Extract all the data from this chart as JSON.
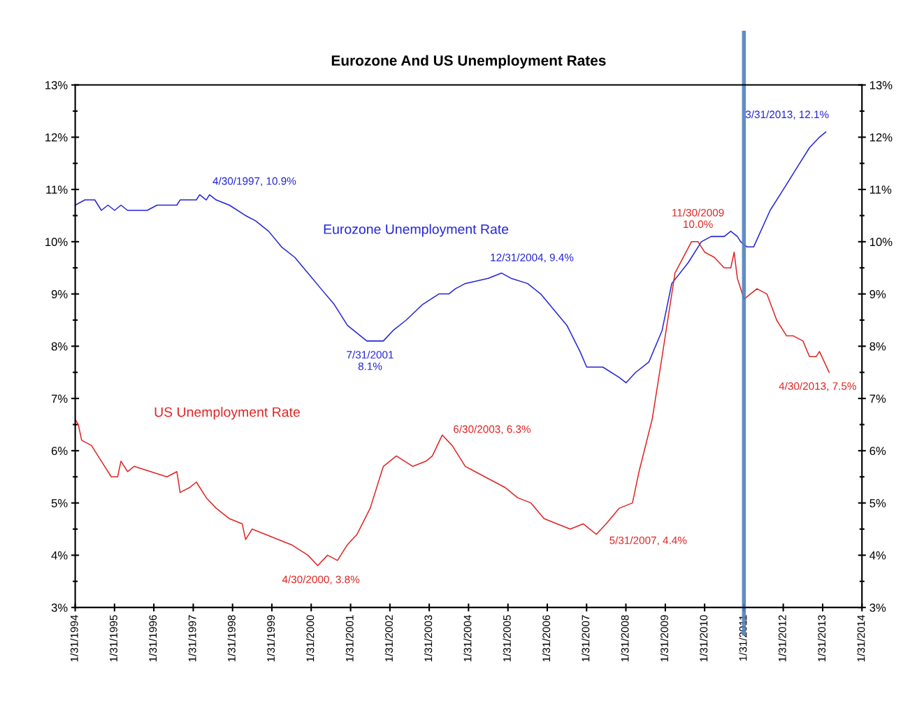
{
  "chart_data": {
    "type": "line",
    "title": "Eurozone And US Unemployment Rates",
    "series": [
      {
        "name": "Eurozone Unemployment Rate",
        "color": "#2424d8",
        "x": [
          "1994-02",
          "1994-05",
          "1994-08",
          "1994-10",
          "1994-12",
          "1995-02",
          "1995-04",
          "1995-06",
          "1995-12",
          "1996-03",
          "1996-09",
          "1996-10",
          "1997-03",
          "1997-04",
          "1997-06",
          "1997-07",
          "1997-09",
          "1998-01",
          "1998-06",
          "1998-09",
          "1999-01",
          "1999-05",
          "1999-09",
          "2000-01",
          "2000-05",
          "2000-09",
          "2001-01",
          "2001-05",
          "2001-07",
          "2001-12",
          "2002-03",
          "2002-07",
          "2002-12",
          "2003-05",
          "2003-08",
          "2003-10",
          "2004-01",
          "2004-08",
          "2004-12",
          "2005-03",
          "2005-08",
          "2005-12",
          "2006-04",
          "2006-08",
          "2006-12",
          "2007-02",
          "2007-07",
          "2007-12",
          "2008-02",
          "2008-05",
          "2008-09",
          "2009-01",
          "2009-04",
          "2009-09",
          "2010-01",
          "2010-04",
          "2010-08",
          "2010-10",
          "2010-12",
          "2011-01",
          "2011-03",
          "2011-05",
          "2011-10",
          "2012-02",
          "2012-06",
          "2012-10",
          "2013-01",
          "2013-03"
        ],
        "values": [
          10.7,
          10.8,
          10.8,
          10.6,
          10.7,
          10.6,
          10.7,
          10.6,
          10.6,
          10.7,
          10.7,
          10.8,
          10.8,
          10.9,
          10.8,
          10.9,
          10.8,
          10.7,
          10.5,
          10.4,
          10.2,
          9.9,
          9.7,
          9.4,
          9.1,
          8.8,
          8.4,
          8.2,
          8.1,
          8.1,
          8.3,
          8.5,
          8.8,
          9.0,
          9.0,
          9.1,
          9.2,
          9.3,
          9.4,
          9.3,
          9.2,
          9.0,
          8.7,
          8.4,
          7.9,
          7.6,
          7.6,
          7.4,
          7.3,
          7.5,
          7.7,
          8.3,
          9.2,
          9.6,
          10.0,
          10.1,
          10.1,
          10.2,
          10.1,
          10.0,
          9.9,
          9.9,
          10.6,
          11.0,
          11.4,
          11.8,
          12.0,
          12.1
        ]
      },
      {
        "name": "US Unemployment Rate",
        "color": "#e02424",
        "x": [
          "1994-02",
          "1994-03",
          "1994-04",
          "1994-07",
          "1994-10",
          "1995-01",
          "1995-03",
          "1995-04",
          "1995-06",
          "1995-08",
          "1996-01",
          "1996-06",
          "1996-09",
          "1996-10",
          "1997-01",
          "1997-03",
          "1997-06",
          "1997-09",
          "1998-01",
          "1998-05",
          "1998-06",
          "1998-08",
          "1998-12",
          "1999-04",
          "1999-08",
          "2000-01",
          "2000-04",
          "2000-07",
          "2000-10",
          "2001-01",
          "2001-04",
          "2001-08",
          "2001-12",
          "2002-04",
          "2002-09",
          "2003-01",
          "2003-03",
          "2003-06",
          "2003-09",
          "2004-01",
          "2004-04",
          "2004-07",
          "2005-01",
          "2005-05",
          "2005-09",
          "2006-01",
          "2006-05",
          "2006-09",
          "2007-01",
          "2007-05",
          "2007-08",
          "2007-12",
          "2008-04",
          "2008-06",
          "2008-10",
          "2009-01",
          "2009-05",
          "2009-10",
          "2009-12",
          "2010-02",
          "2010-05",
          "2010-08",
          "2010-10",
          "2010-11",
          "2010-12",
          "2011-02",
          "2011-04",
          "2011-06",
          "2011-09",
          "2011-12",
          "2012-03",
          "2012-05",
          "2012-08",
          "2012-10",
          "2012-12",
          "2013-01",
          "2013-04"
        ],
        "values": [
          6.6,
          6.5,
          6.2,
          6.1,
          5.8,
          5.5,
          5.5,
          5.8,
          5.6,
          5.7,
          5.6,
          5.5,
          5.6,
          5.2,
          5.3,
          5.4,
          5.1,
          4.9,
          4.7,
          4.6,
          4.3,
          4.5,
          4.4,
          4.3,
          4.2,
          4.0,
          3.8,
          4.0,
          3.9,
          4.2,
          4.4,
          4.9,
          5.7,
          5.9,
          5.7,
          5.8,
          5.9,
          6.3,
          6.1,
          5.7,
          5.6,
          5.5,
          5.3,
          5.1,
          5.0,
          4.7,
          4.6,
          4.5,
          4.6,
          4.4,
          4.6,
          4.9,
          5.0,
          5.6,
          6.6,
          7.8,
          9.4,
          10.0,
          10.0,
          9.8,
          9.7,
          9.5,
          9.5,
          9.8,
          9.3,
          8.9,
          9.0,
          9.1,
          9.0,
          8.5,
          8.2,
          8.2,
          8.1,
          7.8,
          7.8,
          7.9,
          7.5
        ]
      }
    ],
    "xlim": [
      "1994-01-31",
      "2014-01-31"
    ],
    "xticks": [
      {
        "value": "1994-01-31",
        "label": "1/31/1994"
      },
      {
        "value": "1995-01-31",
        "label": "1/31/1995"
      },
      {
        "value": "1996-01-31",
        "label": "1/31/1996"
      },
      {
        "value": "1997-01-31",
        "label": "1/31/1997"
      },
      {
        "value": "1998-01-31",
        "label": "1/31/1998"
      },
      {
        "value": "1999-01-31",
        "label": "1/31/1999"
      },
      {
        "value": "2000-01-31",
        "label": "1/31/2000"
      },
      {
        "value": "2001-01-31",
        "label": "1/31/2001"
      },
      {
        "value": "2002-01-31",
        "label": "1/31/2002"
      },
      {
        "value": "2003-01-31",
        "label": "1/31/2003"
      },
      {
        "value": "2004-01-31",
        "label": "1/31/2004"
      },
      {
        "value": "2005-01-31",
        "label": "1/31/2005"
      },
      {
        "value": "2006-01-31",
        "label": "1/31/2006"
      },
      {
        "value": "2007-01-31",
        "label": "1/31/2007"
      },
      {
        "value": "2008-01-31",
        "label": "1/31/2008"
      },
      {
        "value": "2009-01-31",
        "label": "1/31/2009"
      },
      {
        "value": "2010-01-31",
        "label": "1/31/2010"
      },
      {
        "value": "2011-01-31",
        "label": "1/31/2011"
      },
      {
        "value": "2012-01-31",
        "label": "1/31/2012"
      },
      {
        "value": "2013-01-31",
        "label": "1/31/2013"
      },
      {
        "value": "2014-01-31",
        "label": "1/31/2014"
      }
    ],
    "ylim": [
      3,
      13
    ],
    "yticks": [
      {
        "value": 3,
        "label": "3%"
      },
      {
        "value": 4,
        "label": "4%"
      },
      {
        "value": 5,
        "label": "5%"
      },
      {
        "value": 6,
        "label": "6%"
      },
      {
        "value": 7,
        "label": "7%"
      },
      {
        "value": 8,
        "label": "8%"
      },
      {
        "value": 9,
        "label": "9%"
      },
      {
        "value": 10,
        "label": "10%"
      },
      {
        "value": 11,
        "label": "11%"
      },
      {
        "value": 12,
        "label": "12%"
      },
      {
        "value": 13,
        "label": "13%"
      }
    ],
    "y2lim": [
      3,
      13
    ],
    "y2ticks": [
      {
        "value": 3,
        "label": "3%"
      },
      {
        "value": 4,
        "label": "4%"
      },
      {
        "value": 5,
        "label": "5%"
      },
      {
        "value": 6,
        "label": "6%"
      },
      {
        "value": 7,
        "label": "7%"
      },
      {
        "value": 8,
        "label": "8%"
      },
      {
        "value": 9,
        "label": "9%"
      },
      {
        "value": 10,
        "label": "10%"
      },
      {
        "value": 11,
        "label": "11%"
      },
      {
        "value": 12,
        "label": "12%"
      },
      {
        "value": 13,
        "label": "13%"
      }
    ],
    "ref_lines": [
      {
        "axis": "x",
        "value": "2011-01-31",
        "color": "#4f81bd"
      }
    ],
    "annotations": [
      {
        "text": "4/30/1997, 10.9%",
        "x": "1997-04-30",
        "y": 10.9
      },
      {
        "text": "7/31/2001\n8.1%",
        "x": "2001-07-31",
        "y": 8.1
      },
      {
        "text": "12/31/2004, 9.4%",
        "x": "2004-12-31",
        "y": 9.4
      },
      {
        "text": "3/31/2013, 12.1%",
        "x": "2013-03-31",
        "y": 12.1
      },
      {
        "text": "11/30/2009\n10.0%",
        "x": "2009-11-30",
        "y": 10.0
      },
      {
        "text": "6/30/2003, 6.3%",
        "x": "2003-06-30",
        "y": 6.3
      },
      {
        "text": "4/30/2000, 3.8%",
        "x": "2000-04-30",
        "y": 3.8
      },
      {
        "text": "5/31/2007, 4.4%",
        "x": "2007-05-31",
        "y": 4.4
      },
      {
        "text": "4/30/2013, 7.5%",
        "x": "2013-04-30",
        "y": 7.5
      }
    ],
    "grid": false,
    "legend": false,
    "marker": "none",
    "line_style": "solid"
  }
}
